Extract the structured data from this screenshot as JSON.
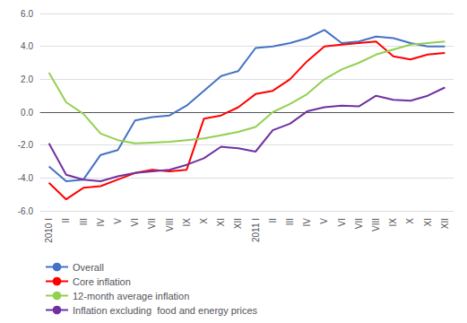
{
  "chart_data": {
    "type": "line",
    "categories": [
      "2010 I",
      "II",
      "III",
      "IV",
      "V",
      "VI",
      "VII",
      "VIII",
      "IX",
      "X",
      "XI",
      "XII",
      "2011 I",
      "II",
      "III",
      "IV",
      "V",
      "VI",
      "VII",
      "VIII",
      "IX",
      "X",
      "XI",
      "XII"
    ],
    "series": [
      {
        "name": "Overall",
        "color": "#4472C4",
        "values": [
          -3.3,
          -4.2,
          -4.1,
          -2.6,
          -2.3,
          -0.5,
          -0.3,
          -0.2,
          0.4,
          1.3,
          2.2,
          2.5,
          3.9,
          4.0,
          4.2,
          4.5,
          5.0,
          4.2,
          4.3,
          4.6,
          4.5,
          4.2,
          4.0,
          4.0
        ]
      },
      {
        "name": "Core inflation",
        "color": "#FF0000",
        "values": [
          -4.3,
          -5.3,
          -4.6,
          -4.5,
          -4.1,
          -3.7,
          -3.5,
          -3.6,
          -3.5,
          -0.4,
          -0.2,
          0.3,
          1.1,
          1.3,
          2.0,
          3.1,
          4.0,
          4.1,
          4.2,
          4.3,
          3.4,
          3.2,
          3.5,
          3.6
        ]
      },
      {
        "name": "12-month average inflation",
        "color": "#92D050",
        "values": [
          2.4,
          0.6,
          -0.1,
          -1.3,
          -1.7,
          -1.9,
          -1.85,
          -1.8,
          -1.7,
          -1.6,
          -1.4,
          -1.2,
          -0.9,
          0.0,
          0.5,
          1.1,
          2.0,
          2.6,
          3.0,
          3.5,
          3.8,
          4.1,
          4.2,
          4.3
        ]
      },
      {
        "name": "Inflation excluding  food and energy prices",
        "color": "#7030A0",
        "values": [
          -1.9,
          -3.8,
          -4.1,
          -4.2,
          -3.9,
          -3.7,
          -3.6,
          -3.5,
          -3.2,
          -2.8,
          -2.1,
          -2.2,
          -2.4,
          -1.1,
          -0.7,
          0.05,
          0.3,
          0.4,
          0.35,
          1.0,
          0.75,
          0.7,
          1.0,
          1.5
        ]
      }
    ],
    "ylim": [
      -6.0,
      6.0
    ],
    "yticks": [
      {
        "value": -6,
        "label": "-6.0"
      },
      {
        "value": -4,
        "label": "-4.0"
      },
      {
        "value": -2,
        "label": "-2.0"
      },
      {
        "value": 0,
        "label": "0.0"
      },
      {
        "value": 2,
        "label": "2.0"
      },
      {
        "value": 4,
        "label": "4.0"
      },
      {
        "value": 6,
        "label": "6.0"
      }
    ],
    "grid": true,
    "legend": "lower left"
  }
}
